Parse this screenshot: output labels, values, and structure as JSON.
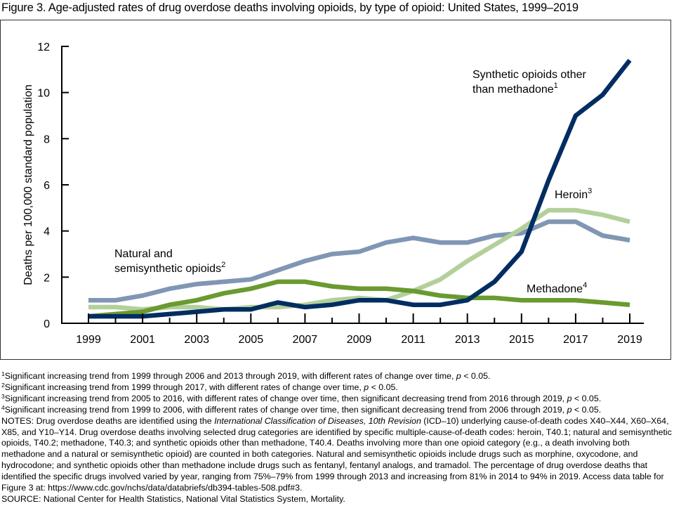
{
  "figure_title": "Figure 3. Age-adjusted rates of drug overdose deaths involving opioids, by type of opioid: United States, 1999–2019",
  "chart_data": {
    "type": "line",
    "title": "Age-adjusted rates of drug overdose deaths involving opioids, by type of opioid: United States, 1999–2019",
    "xlabel": "",
    "ylabel": "Deaths per 100,000 standard population",
    "x": [
      1999,
      2000,
      2001,
      2002,
      2003,
      2004,
      2005,
      2006,
      2007,
      2008,
      2009,
      2010,
      2011,
      2012,
      2013,
      2014,
      2015,
      2016,
      2017,
      2018,
      2019
    ],
    "xtick_labels": [
      "1999",
      "2001",
      "2003",
      "2005",
      "2007",
      "2009",
      "2011",
      "2013",
      "2015",
      "2017",
      "2019"
    ],
    "ytick_labels": [
      "0",
      "2",
      "4",
      "6",
      "8",
      "10",
      "12"
    ],
    "ylim": [
      0,
      12
    ],
    "xlim": [
      1999,
      2019
    ],
    "grid": false,
    "legend": "inline labels",
    "series": [
      {
        "name": "Natural and semisynthetic opioids",
        "label_lines": [
          "Natural and",
          "semisynthetic opioids"
        ],
        "footnote_ref": "2",
        "color": "#8096B4",
        "values": [
          1.0,
          1.0,
          1.2,
          1.5,
          1.7,
          1.8,
          1.9,
          2.3,
          2.7,
          3.0,
          3.1,
          3.5,
          3.7,
          3.5,
          3.5,
          3.8,
          3.9,
          4.4,
          4.4,
          3.8,
          3.6
        ]
      },
      {
        "name": "Heroin",
        "label_lines": [
          "Heroin"
        ],
        "footnote_ref": "3",
        "color": "#B3D09A",
        "values": [
          0.7,
          0.7,
          0.6,
          0.7,
          0.7,
          0.6,
          0.7,
          0.7,
          0.8,
          1.0,
          1.1,
          1.0,
          1.4,
          1.9,
          2.7,
          3.4,
          4.1,
          4.9,
          4.9,
          4.7,
          4.4
        ]
      },
      {
        "name": "Methadone",
        "label_lines": [
          "Methadone"
        ],
        "footnote_ref": "4",
        "color": "#6A9A30",
        "values": [
          0.3,
          0.4,
          0.5,
          0.8,
          1.0,
          1.3,
          1.5,
          1.8,
          1.8,
          1.6,
          1.5,
          1.5,
          1.4,
          1.2,
          1.1,
          1.1,
          1.0,
          1.0,
          1.0,
          0.9,
          0.8
        ]
      },
      {
        "name": "Synthetic opioids other than methadone",
        "label_lines": [
          "Synthetic opioids other",
          "than methadone"
        ],
        "footnote_ref": "1",
        "color": "#002D62",
        "values": [
          0.3,
          0.3,
          0.3,
          0.4,
          0.5,
          0.6,
          0.6,
          0.9,
          0.7,
          0.8,
          1.0,
          1.0,
          0.8,
          0.8,
          1.0,
          1.8,
          3.1,
          6.2,
          9.0,
          9.9,
          11.4
        ]
      }
    ]
  },
  "footnotes": [
    {
      "ref": "1",
      "text": "Significant increasing trend from 1999 through 2006 and 2013 through 2019, with different rates of change over time, ",
      "p": "p",
      "tail": " < 0.05."
    },
    {
      "ref": "2",
      "text": "Significant increasing trend from 1999 through 2017, with different rates of change over time, ",
      "p": "p",
      "tail": " < 0.05."
    },
    {
      "ref": "3",
      "text": "Significant increasing trend from 2005 to 2016, with different rates of change over time, then significant decreasing trend from 2016 through 2019, ",
      "p": "p",
      "tail": " < 0.05."
    },
    {
      "ref": "4",
      "text": "Significant increasing trend from 1999 to 2006, with different rates of change over time, then significant decreasing trend from 2006 through 2019, ",
      "p": "p",
      "tail": " < 0.05."
    }
  ],
  "notes": {
    "lead": "NOTES: Drug overdose deaths are identified using the ",
    "icd_name": "International Classification of Diseases, 10th Revision",
    "body": " (ICD–10) underlying cause-of-death codes X40–X44, X60–X64, X85, and Y10–Y14. Drug overdose deaths involving selected drug categories are identified by specific multiple-cause-of-death codes: heroin, T40.1; natural and semisynthetic opioids, T40.2; methadone, T40.3; and synthetic opioids other than methadone, T40.4. Deaths involving more than one opioid category (e.g., a death involving both methadone and a natural or semisynthetic opioid) are counted in both categories. Natural and semisynthetic opioids include drugs such as morphine, oxycodone, and hydrocodone; and synthetic opioids other than methadone include drugs such as fentanyl, fentanyl analogs, and tramadol. The percentage of drug overdose deaths that identified the specific drugs involved varied by year, ranging from 75%–79% from 1999 through 2013 and increasing from 81% in 2014 to 94% in 2019. Access data table for Figure 3 at: https://www.cdc.gov/nchs/data/databriefs/db394-tables-508.pdf#3."
  },
  "source": "SOURCE: National Center for Health Statistics, National Vital Statistics System, Mortality."
}
